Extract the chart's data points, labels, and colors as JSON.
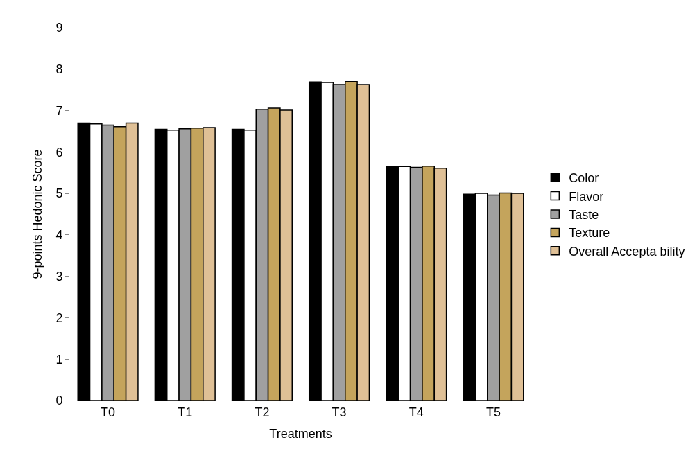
{
  "chart_data": {
    "type": "bar",
    "xlabel": "Treatments",
    "ylabel": "9-points Hedonic Score",
    "categories": [
      "T0",
      "T1",
      "T2",
      "T3",
      "T4",
      "T5"
    ],
    "series": [
      {
        "name": "Color",
        "color": "#000000",
        "values": [
          6.7,
          6.55,
          6.55,
          7.69,
          5.65,
          4.98
        ]
      },
      {
        "name": "Flavor",
        "color": "#ffffff",
        "values": [
          6.68,
          6.53,
          6.53,
          7.68,
          5.65,
          5.0
        ]
      },
      {
        "name": "Taste",
        "color": "#a0a0a0",
        "values": [
          6.65,
          6.56,
          7.03,
          7.63,
          5.63,
          4.96
        ]
      },
      {
        "name": "Texture",
        "color": "#c4a45c",
        "values": [
          6.61,
          6.58,
          7.06,
          7.7,
          5.66,
          5.01
        ]
      },
      {
        "name": "Overall Accepta bility",
        "color": "#dfc096",
        "values": [
          6.7,
          6.59,
          7.01,
          7.63,
          5.61,
          5.0
        ]
      }
    ],
    "ylim": [
      0,
      9
    ],
    "yticks": [
      0,
      1,
      2,
      3,
      4,
      5,
      6,
      7,
      8,
      9
    ],
    "grid": false,
    "legend": "right"
  }
}
